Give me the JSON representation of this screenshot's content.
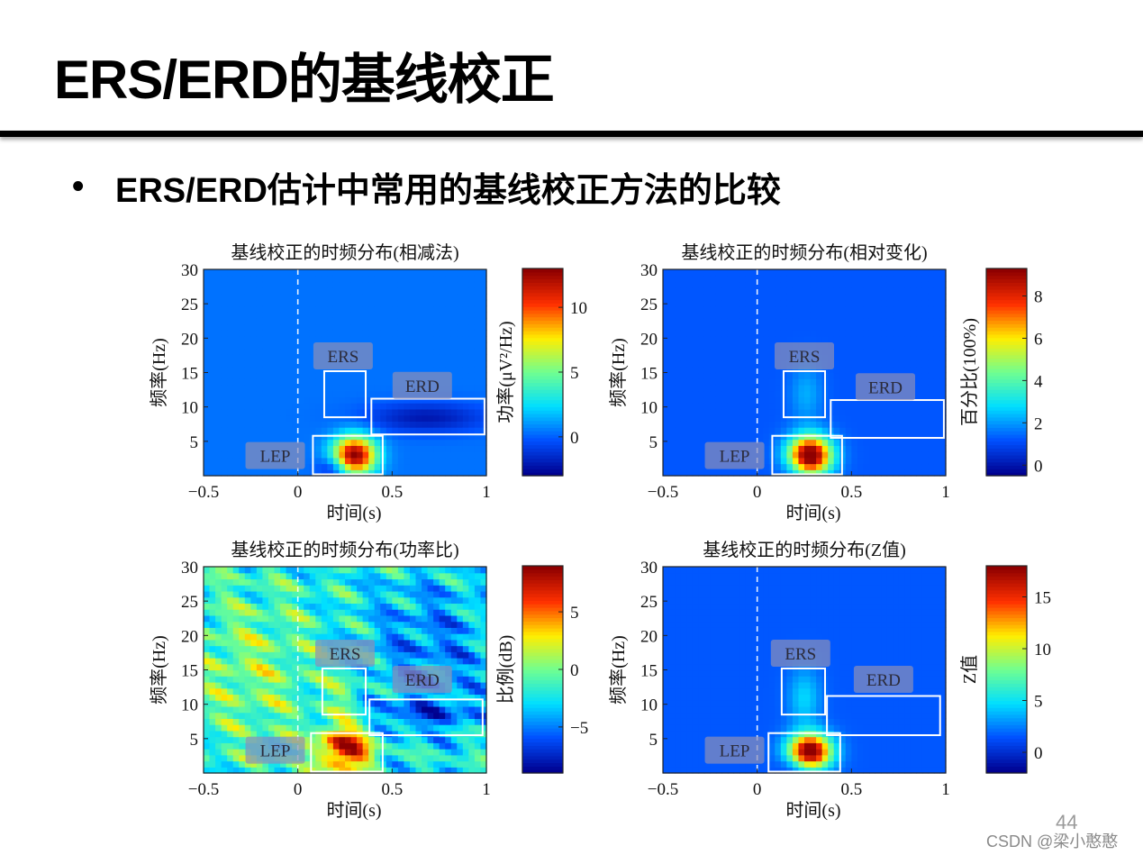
{
  "slide": {
    "title": "ERS/ERD的基线校正",
    "bullet": "ERS/ERD估计中常用的基线校正方法的比较",
    "page_number": "44",
    "watermark": "CSDN @梁小憨憨"
  },
  "colormap": [
    "#00008f",
    "#0050ff",
    "#00dfff",
    "#70ff90",
    "#ffee00",
    "#ff3000",
    "#8f0000"
  ],
  "chart_data": [
    {
      "type": "heatmap",
      "title": "基线校正的时频分布(相减法)",
      "xlabel": "时间(s)",
      "ylabel": "频率(Hz)",
      "colorbar_label": "功率(μV²/Hz)",
      "xlim": [
        -0.5,
        1
      ],
      "ylim": [
        0,
        30
      ],
      "xticks": [
        -0.5,
        0,
        0.5,
        1
      ],
      "xtick_labels": [
        "−0.5",
        "0",
        "0.5",
        "1"
      ],
      "yticks": [
        5,
        10,
        15,
        20,
        25,
        30
      ],
      "ytick_labels": [
        "5",
        "10",
        "15",
        "20",
        "25",
        "30"
      ],
      "clim": [
        -3,
        13
      ],
      "cticks": [
        0,
        5,
        10
      ],
      "ctick_labels": [
        "0",
        "5",
        "10"
      ],
      "background_value": 0.3,
      "stimulus_line_x": 0,
      "blobs": [
        {
          "x": 0.3,
          "y": 3,
          "sx": 0.08,
          "sy": 2.0,
          "v": 13
        },
        {
          "x": 0.2,
          "y": 1.2,
          "sx": 0.06,
          "sy": 1.2,
          "v": -3
        },
        {
          "x": 0.68,
          "y": 8.5,
          "sx": 0.22,
          "sy": 1.5,
          "v": -2.5
        }
      ],
      "regions": [
        {
          "label": "ERS",
          "x0": 0.14,
          "x1": 0.36,
          "y0": 8.5,
          "y1": 15.2,
          "label_x": 0.24,
          "label_y": 17.3
        },
        {
          "label": "ERD",
          "x0": 0.39,
          "x1": 0.99,
          "y0": 6.0,
          "y1": 11.2,
          "label_x": 0.66,
          "label_y": 13.0
        },
        {
          "label": "LEP",
          "x0": 0.08,
          "x1": 0.45,
          "y0": 0.2,
          "y1": 5.8,
          "label_x": -0.12,
          "label_y": 2.8
        }
      ]
    },
    {
      "type": "heatmap",
      "title": "基线校正的时频分布(相对变化)",
      "xlabel": "时间(s)",
      "ylabel": "频率(Hz)",
      "colorbar_label": "百分比(100%)",
      "xlim": [
        -0.5,
        1
      ],
      "ylim": [
        0,
        30
      ],
      "xticks": [
        -0.5,
        0,
        0.5,
        1
      ],
      "xtick_labels": [
        "−0.5",
        "0",
        "0.5",
        "1"
      ],
      "yticks": [
        5,
        10,
        15,
        20,
        25,
        30
      ],
      "ytick_labels": [
        "5",
        "10",
        "15",
        "20",
        "25",
        "30"
      ],
      "clim": [
        -0.5,
        9.3
      ],
      "cticks": [
        0,
        2,
        4,
        6,
        8
      ],
      "ctick_labels": [
        "0",
        "2",
        "4",
        "6",
        "8"
      ],
      "background_value": 1.2,
      "stimulus_line_x": 0,
      "blobs": [
        {
          "x": 0.28,
          "y": 3,
          "sx": 0.08,
          "sy": 2.0,
          "v": 9
        },
        {
          "x": 0.2,
          "y": 1.2,
          "sx": 0.06,
          "sy": 1.2,
          "v": -0.6
        },
        {
          "x": 0.26,
          "y": 12,
          "sx": 0.06,
          "sy": 3,
          "v": 1.0
        }
      ],
      "regions": [
        {
          "label": "ERS",
          "x0": 0.14,
          "x1": 0.36,
          "y0": 8.5,
          "y1": 15.2,
          "label_x": 0.25,
          "label_y": 17.3
        },
        {
          "label": "ERD",
          "x0": 0.39,
          "x1": 0.99,
          "y0": 5.5,
          "y1": 11.0,
          "label_x": 0.68,
          "label_y": 12.8
        },
        {
          "label": "LEP",
          "x0": 0.08,
          "x1": 0.45,
          "y0": 0.2,
          "y1": 5.8,
          "label_x": -0.12,
          "label_y": 2.8
        }
      ]
    },
    {
      "type": "heatmap",
      "title": "基线校正的时频分布(功率比)",
      "xlabel": "时间(s)",
      "ylabel": "频率(Hz)",
      "colorbar_label": "比例(dB)",
      "xlim": [
        -0.5,
        1
      ],
      "ylim": [
        0,
        30
      ],
      "xticks": [
        -0.5,
        0,
        0.5,
        1
      ],
      "xtick_labels": [
        "−0.5",
        "0",
        "0.5",
        "1"
      ],
      "yticks": [
        5,
        10,
        15,
        20,
        25,
        30
      ],
      "ytick_labels": [
        "5",
        "10",
        "15",
        "20",
        "25",
        "30"
      ],
      "clim": [
        -9,
        9
      ],
      "cticks": [
        -5,
        0,
        5
      ],
      "ctick_labels": [
        "−5",
        "0",
        "5"
      ],
      "background_value": -2,
      "noise": 2.5,
      "stimulus_line_x": 0,
      "blobs": [
        {
          "x": 0.25,
          "y": 3.5,
          "sx": 0.1,
          "sy": 2.5,
          "v": 10
        },
        {
          "x": -0.25,
          "y": 15,
          "sx": 0.25,
          "sy": 8,
          "v": 2.5
        },
        {
          "x": 0.25,
          "y": 12,
          "sx": 0.06,
          "sy": 3,
          "v": 2
        },
        {
          "x": 0.7,
          "y": 18,
          "sx": 0.25,
          "sy": 8,
          "v": -3
        },
        {
          "x": 0.68,
          "y": 8.5,
          "sx": 0.22,
          "sy": 1.5,
          "v": -3
        }
      ],
      "regions": [
        {
          "label": "ERS",
          "x0": 0.13,
          "x1": 0.36,
          "y0": 8.5,
          "y1": 15.2,
          "label_x": 0.25,
          "label_y": 17.3
        },
        {
          "label": "ERD",
          "x0": 0.38,
          "x1": 0.98,
          "y0": 5.5,
          "y1": 10.7,
          "label_x": 0.66,
          "label_y": 13.5
        },
        {
          "label": "LEP",
          "x0": 0.07,
          "x1": 0.45,
          "y0": 0.2,
          "y1": 5.8,
          "label_x": -0.12,
          "label_y": 3.2
        }
      ]
    },
    {
      "type": "heatmap",
      "title": "基线校正的时频分布(Z值)",
      "xlabel": "时间(s)",
      "ylabel": "频率(Hz)",
      "colorbar_label": "Z值",
      "xlim": [
        -0.5,
        1
      ],
      "ylim": [
        0,
        30
      ],
      "xticks": [
        -0.5,
        0,
        0.5,
        1
      ],
      "xtick_labels": [
        "−0.5",
        "0",
        "0.5",
        "1"
      ],
      "yticks": [
        5,
        10,
        15,
        20,
        25,
        30
      ],
      "ytick_labels": [
        "5",
        "10",
        "15",
        "20",
        "25",
        "30"
      ],
      "clim": [
        -2,
        18
      ],
      "cticks": [
        0,
        5,
        10,
        15
      ],
      "ctick_labels": [
        "0",
        "5",
        "10",
        "15"
      ],
      "background_value": 1.5,
      "stimulus_line_x": 0,
      "blobs": [
        {
          "x": 0.28,
          "y": 3.2,
          "sx": 0.08,
          "sy": 1.8,
          "v": 18
        },
        {
          "x": 0.2,
          "y": 1.2,
          "sx": 0.06,
          "sy": 1.2,
          "v": -2
        },
        {
          "x": 0.25,
          "y": 11,
          "sx": 0.06,
          "sy": 3,
          "v": 3
        }
      ],
      "regions": [
        {
          "label": "ERS",
          "x0": 0.13,
          "x1": 0.36,
          "y0": 8.5,
          "y1": 15.2,
          "label_x": 0.23,
          "label_y": 17.3
        },
        {
          "label": "ERD",
          "x0": 0.37,
          "x1": 0.97,
          "y0": 5.5,
          "y1": 11.2,
          "label_x": 0.67,
          "label_y": 13.5
        },
        {
          "label": "LEP",
          "x0": 0.06,
          "x1": 0.44,
          "y0": 0.2,
          "y1": 5.8,
          "label_x": -0.12,
          "label_y": 3.2
        }
      ]
    }
  ]
}
